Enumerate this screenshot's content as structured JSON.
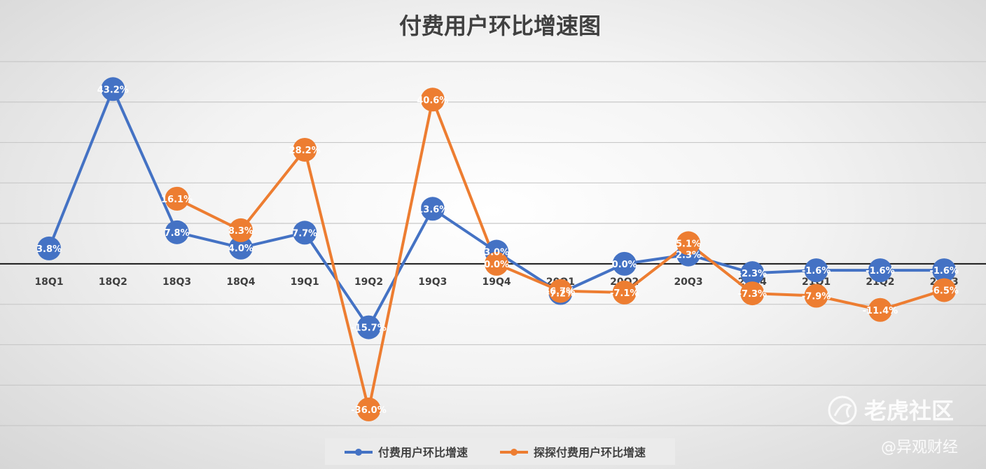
{
  "chart_data": {
    "type": "line",
    "title": "付费用户环比增速图",
    "categories": [
      "18Q1",
      "18Q2",
      "18Q3",
      "18Q4",
      "19Q1",
      "19Q2",
      "19Q3",
      "19Q4",
      "20Q1",
      "20Q2",
      "20Q3",
      "20Q4",
      "21Q1",
      "21Q2",
      "21Q3"
    ],
    "series": [
      {
        "name": "付费用户环比增速",
        "color": "#4472C4",
        "values": [
          3.8,
          43.2,
          7.8,
          4.0,
          7.7,
          -15.7,
          13.6,
          3.0,
          -7.2,
          0.0,
          2.3,
          -2.3,
          -1.6,
          -1.6,
          -1.6
        ],
        "labels": [
          "3.8%",
          "43.2%",
          "7.8%",
          "4.0%",
          "7.7%",
          "-15.7%",
          "13.6%",
          "3.0%",
          "-7.2%",
          "0.0%",
          "2.3%",
          "-2.3%",
          "-1.6%",
          "-1.6%",
          "-1.6%"
        ]
      },
      {
        "name": "探探付费用户环比增速",
        "color": "#ED7D31",
        "values": [
          null,
          null,
          16.1,
          8.3,
          28.2,
          -36.0,
          40.6,
          0.0,
          -6.7,
          -7.1,
          5.1,
          -7.3,
          -7.9,
          -11.4,
          -6.5
        ],
        "labels": [
          null,
          null,
          "16.1%",
          "8.3%",
          "28.2%",
          "-36.0%",
          "40.6%",
          "0.0%",
          "-6.7%",
          "-7.1%",
          "5.1%",
          "-7.3%",
          "-7.9%",
          "-11.4%",
          "-6.5%"
        ]
      }
    ],
    "ylim": [
      -40,
      50
    ],
    "grid": true,
    "legend_position": "bottom"
  },
  "watermark": {
    "brand": "老虎社区",
    "source": "@异观财经",
    "icon": "tiger-logo-icon"
  }
}
